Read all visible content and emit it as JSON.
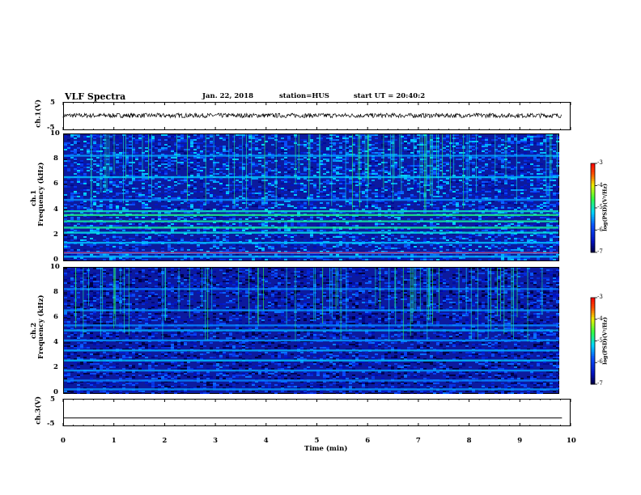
{
  "header": {
    "title": "VLF Spectra",
    "date": "Jan. 22, 2018",
    "station": "station=HUS",
    "start": "start UT = 20:40:2"
  },
  "chart_data": [
    {
      "type": "line",
      "ylabel": "ch.1(V)",
      "ylim": [
        -5,
        5
      ],
      "yticks": [
        "5",
        "-5"
      ],
      "x": [
        0,
        9.83
      ],
      "description_level": [
        0.2,
        0.2
      ],
      "noise_amplitude_V": 0.8
    },
    {
      "type": "heatmap",
      "ylabel_lines": [
        "ch.1",
        "Frequency (kHz)"
      ],
      "ylim": [
        0,
        10
      ],
      "yticks": [
        "0",
        "2",
        "4",
        "6",
        "8",
        "10"
      ],
      "xlim": [
        0,
        9.83
      ],
      "colorbar": {
        "label": "log(PSD)(V²/Hz)",
        "range": [
          -7,
          -3
        ],
        "ticks": [
          "-3",
          "-4",
          "-5",
          "-6",
          "-7"
        ]
      },
      "bands_kHz": [
        0.3,
        0.6,
        1.4,
        2.2,
        2.6,
        3.1,
        3.6,
        3.9,
        4.8,
        6.6,
        8.3
      ],
      "background_level": -6.0
    },
    {
      "type": "heatmap",
      "ylabel_lines": [
        "ch.2",
        "Frequency (kHz)"
      ],
      "ylim": [
        0,
        10
      ],
      "yticks": [
        "0",
        "2",
        "4",
        "6",
        "8",
        "10"
      ],
      "xlim": [
        0,
        9.83
      ],
      "colorbar": {
        "label": "log(PSD)(V²/Hz)",
        "range": [
          -7,
          -3
        ],
        "ticks": [
          "-3",
          "-4",
          "-5",
          "-6",
          "-7"
        ]
      },
      "bands_kHz": [
        0.3,
        1.0,
        1.8,
        2.6,
        3.4,
        4.2,
        5.0,
        5.4,
        6.6,
        8.3
      ],
      "background_level": -6.4
    },
    {
      "type": "line",
      "ylabel": "ch.3(V)",
      "ylim": [
        -5,
        5
      ],
      "yticks": [
        "5",
        "-5"
      ],
      "x": [
        0,
        9.83
      ],
      "y": [
        -2,
        -2
      ]
    }
  ],
  "xaxis": {
    "label": "Time (min)",
    "ticks": [
      "0",
      "1",
      "2",
      "3",
      "4",
      "5",
      "6",
      "7",
      "8",
      "9",
      "10"
    ],
    "range": [
      0,
      10
    ]
  }
}
